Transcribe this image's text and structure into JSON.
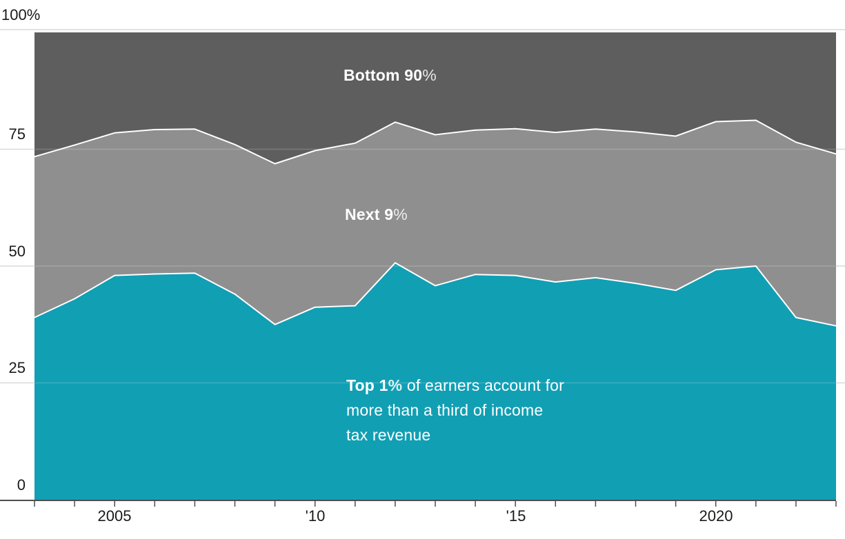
{
  "chart_data": {
    "type": "area",
    "stacked": true,
    "title": "",
    "xlabel": "",
    "ylabel": "",
    "x_range": [
      2003,
      2023
    ],
    "ylim": [
      0,
      100
    ],
    "grid": "horizontal",
    "x": [
      2003,
      2004,
      2005,
      2006,
      2007,
      2008,
      2009,
      2010,
      2011,
      2012,
      2013,
      2014,
      2015,
      2016,
      2017,
      2018,
      2019,
      2020,
      2021,
      2022,
      2023
    ],
    "series": [
      {
        "name": "Top 1%",
        "color": "#119fb4",
        "values": [
          39.0,
          43.0,
          48.0,
          48.3,
          48.5,
          44.0,
          37.5,
          41.2,
          41.5,
          50.7,
          45.8,
          48.2,
          48.0,
          46.6,
          47.5,
          46.3,
          44.8,
          49.2,
          50.0,
          39.0,
          37.2
        ]
      },
      {
        "name": "Next 9%",
        "color": "#8f8f8f",
        "values": [
          34.4,
          32.9,
          30.5,
          30.9,
          30.8,
          32.0,
          34.4,
          33.5,
          34.8,
          30.1,
          32.3,
          30.9,
          31.4,
          32.0,
          31.8,
          32.4,
          33.0,
          31.7,
          31.2,
          37.5,
          36.8
        ]
      },
      {
        "name": "Bottom 90%",
        "color": "#5e5e5e",
        "values": [
          26.6,
          24.1,
          21.5,
          20.8,
          20.7,
          24.0,
          28.1,
          25.3,
          23.7,
          19.2,
          21.9,
          20.9,
          20.6,
          21.4,
          20.7,
          21.3,
          22.2,
          19.1,
          18.8,
          23.5,
          26.0
        ]
      }
    ],
    "y_ticks": [
      0,
      25,
      50,
      75,
      100
    ],
    "x_labeled_ticks": [
      2005,
      2010,
      2015,
      2020
    ],
    "legend_position": "labels-inside-areas"
  },
  "y_tick_labels": [
    "100%",
    "75",
    "50",
    "25",
    "0"
  ],
  "x_tick_labels": [
    "2005",
    "'10",
    "'15",
    "2020"
  ],
  "band_labels": {
    "bottom90": {
      "text": "Bottom 90",
      "pct": "%"
    },
    "next9": {
      "text": "Next 9",
      "pct": "%"
    }
  },
  "annotation": {
    "lead_bold": "Top 1",
    "lead_pct": "%",
    "line1_rest": " of earners account for",
    "line2": "more than a third of income",
    "line3": "tax revenue"
  },
  "colors": {
    "top1_area": "#119fb4",
    "next9_area": "#8f8f8f",
    "bottom90_area": "#5e5e5e",
    "boundary_line": "#ffffff",
    "gridline_margin": "#d9d9d9",
    "gridline_overlay": "rgba(255,255,255,0.18)",
    "axis_line": "#4d4d4d",
    "tick_text": "#1a1a1a",
    "background": "#ffffff"
  }
}
